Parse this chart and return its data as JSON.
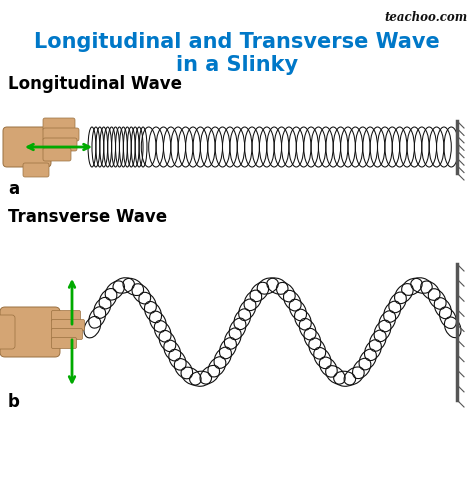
{
  "title_line1": "Longitudinal and Transverse Wave",
  "title_line2": "in a Slinky",
  "title_color": "#0078c8",
  "title_fontsize": 15,
  "bg_color": "#ffffff",
  "watermark": "teachoo.com",
  "label_longitudinal": "Longitudinal Wave",
  "label_transverse": "Transverse Wave",
  "label_a": "a",
  "label_b": "b",
  "label_fontsize": 12,
  "arrow_color": "#00aa00",
  "coil_color": "#111111",
  "wall_color": "#555555",
  "hand_color": "#d4a574",
  "hand_outline": "#9a7040",
  "fig_width": 4.74,
  "fig_height": 4.87,
  "dpi": 100
}
